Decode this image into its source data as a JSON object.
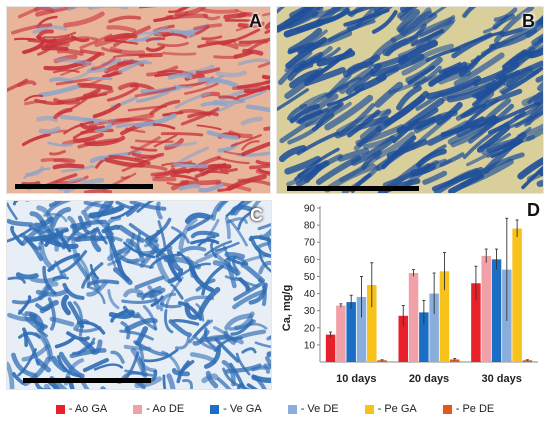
{
  "panels": {
    "a": {
      "letter": "A"
    },
    "b": {
      "letter": "B"
    },
    "c": {
      "letter": "C"
    },
    "d": {
      "letter": "D"
    }
  },
  "colors": {
    "panel_a_bg": "#e8b49a",
    "panel_a_fiber": "#c8323c",
    "panel_a_accent": "#8fa3c8",
    "panel_b_bg": "#d8cf9a",
    "panel_b_fiber": "#1f4f9a",
    "panel_c_bg": "#e8eef6",
    "panel_c_fiber": "#2f6db4"
  },
  "chart_data": {
    "type": "bar",
    "ylabel": "Ca, mg/g",
    "ylim": [
      0,
      90
    ],
    "yticks": [
      10,
      20,
      30,
      40,
      50,
      60,
      70,
      80,
      90
    ],
    "categories": [
      "10 days",
      "20 days",
      "30 days"
    ],
    "grid": false,
    "legend_position": "bottom",
    "series": [
      {
        "name": "- Ao GA",
        "color": "#e8202a",
        "values": [
          16,
          27,
          46
        ],
        "errors": [
          1.5,
          6,
          10
        ]
      },
      {
        "name": "- Ao DE",
        "color": "#f2a0a8",
        "values": [
          33,
          52,
          62
        ],
        "errors": [
          1,
          2,
          4
        ]
      },
      {
        "name": "- Ve GA",
        "color": "#1a6fc4",
        "values": [
          35,
          29,
          60
        ],
        "errors": [
          4,
          7,
          6
        ]
      },
      {
        "name": "- Ve DE",
        "color": "#8aaedb",
        "values": [
          38,
          40,
          54
        ],
        "errors": [
          12,
          12,
          30
        ]
      },
      {
        "name": "- Pe GA",
        "color": "#f7c21a",
        "values": [
          45,
          53,
          78
        ],
        "errors": [
          13,
          11,
          5
        ]
      },
      {
        "name": "- Pe DE",
        "color": "#e15a1c",
        "values": [
          1,
          1.5,
          1
        ],
        "errors": [
          0.3,
          0.5,
          0.3
        ]
      }
    ]
  }
}
